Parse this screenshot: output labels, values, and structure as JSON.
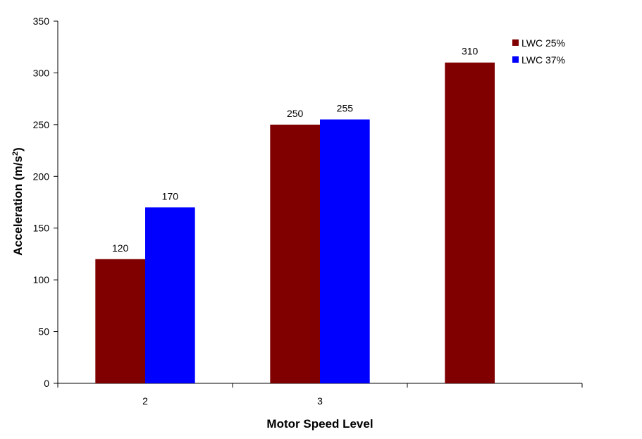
{
  "chart_data": {
    "type": "bar",
    "title": "",
    "xlabel": "Motor Speed Level",
    "ylabel": "Acceleration (m/s",
    "ylabel_superscript": "2",
    "ylabel_suffix": ")",
    "categories": [
      "2",
      "3",
      ""
    ],
    "series": [
      {
        "name": "LWC 25%",
        "color": "#800000",
        "values": [
          120,
          250,
          310
        ]
      },
      {
        "name": "LWC 37%",
        "color": "#0000FF",
        "values": [
          170,
          255,
          null
        ]
      }
    ],
    "ylim": [
      0,
      350
    ],
    "yticks": [
      0,
      50,
      100,
      150,
      200,
      250,
      300,
      350
    ],
    "grid": false,
    "legend_position": "top-right",
    "data_labels": true
  }
}
